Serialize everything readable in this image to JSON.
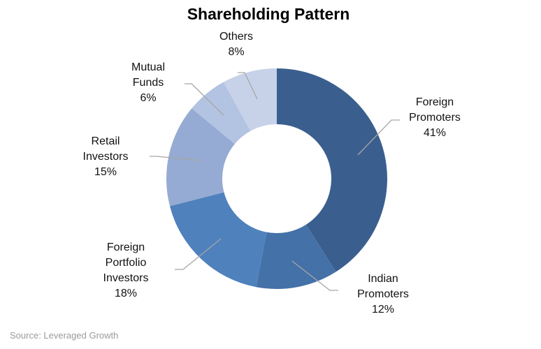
{
  "chart_data": {
    "type": "pie",
    "title": "Shareholding Pattern",
    "source": "Source: Leveraged Growth",
    "slices": [
      {
        "label_lines": [
          "Foreign",
          "Promoters"
        ],
        "percent_label": "41%",
        "value": 41,
        "color": "#3a5f8f"
      },
      {
        "label_lines": [
          "Indian",
          "Promoters"
        ],
        "percent_label": "12%",
        "value": 12,
        "color": "#4371a8"
      },
      {
        "label_lines": [
          "Foreign",
          "Portfolio",
          "Investors"
        ],
        "percent_label": "18%",
        "value": 18,
        "color": "#4f81bd"
      },
      {
        "label_lines": [
          "Retail",
          "Investors"
        ],
        "percent_label": "15%",
        "value": 15,
        "color": "#95abd3"
      },
      {
        "label_lines": [
          "Mutual",
          "Funds"
        ],
        "percent_label": "6%",
        "value": 6,
        "color": "#b3c3e2"
      },
      {
        "label_lines": [
          "Others"
        ],
        "percent_label": "8%",
        "value": 8,
        "color": "#c7d2e8"
      }
    ]
  }
}
